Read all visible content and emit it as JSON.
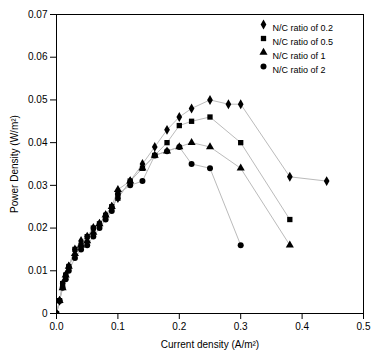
{
  "chart_data": {
    "type": "line",
    "xlabel": "Current density (A/m²)",
    "ylabel": "Power Density (W/m²)",
    "xlim": [
      0,
      0.5
    ],
    "ylim": [
      0,
      0.07
    ],
    "xticks": [
      {
        "value": 0,
        "label": "0.0"
      },
      0.1,
      0.2,
      0.3,
      0.4,
      0.5
    ],
    "yticks": [
      0,
      0.01,
      0.02,
      0.03,
      0.04,
      0.05,
      0.06,
      0.07
    ],
    "color": "#bbbbbb",
    "grid": false,
    "legend": "upper right",
    "series": [
      {
        "name": "N/C ratio of 0.2",
        "marker": "diamond",
        "x": [
          0.0,
          0.005,
          0.01,
          0.015,
          0.02,
          0.03,
          0.04,
          0.05,
          0.06,
          0.07,
          0.08,
          0.09,
          0.1,
          0.12,
          0.14,
          0.16,
          0.18,
          0.2,
          0.22,
          0.25,
          0.28,
          0.3,
          0.38,
          0.44
        ],
        "values": [
          0.0,
          0.003,
          0.007,
          0.009,
          0.011,
          0.015,
          0.017,
          0.018,
          0.02,
          0.021,
          0.023,
          0.025,
          0.027,
          0.031,
          0.035,
          0.039,
          0.043,
          0.046,
          0.048,
          0.05,
          0.049,
          0.049,
          0.032,
          0.031
        ]
      },
      {
        "name": "N/C ratio of 0.5",
        "marker": "square",
        "x": [
          0.0,
          0.005,
          0.01,
          0.015,
          0.02,
          0.03,
          0.04,
          0.05,
          0.06,
          0.07,
          0.08,
          0.09,
          0.1,
          0.12,
          0.14,
          0.16,
          0.18,
          0.2,
          0.22,
          0.25,
          0.3,
          0.38
        ],
        "values": [
          0.0,
          0.003,
          0.007,
          0.009,
          0.011,
          0.015,
          0.016,
          0.018,
          0.02,
          0.021,
          0.023,
          0.025,
          0.027,
          0.031,
          0.034,
          0.037,
          0.04,
          0.044,
          0.045,
          0.046,
          0.04,
          0.022
        ]
      },
      {
        "name": "N/C ratio of 1",
        "marker": "triangle",
        "x": [
          0.0,
          0.005,
          0.01,
          0.015,
          0.02,
          0.03,
          0.04,
          0.05,
          0.06,
          0.07,
          0.08,
          0.09,
          0.1,
          0.12,
          0.14,
          0.16,
          0.18,
          0.2,
          0.22,
          0.25,
          0.3,
          0.38
        ],
        "values": [
          0.0,
          0.003,
          0.006,
          0.009,
          0.011,
          0.014,
          0.016,
          0.017,
          0.019,
          0.021,
          0.023,
          0.025,
          0.029,
          0.031,
          0.034,
          0.037,
          0.038,
          0.039,
          0.04,
          0.039,
          0.034,
          0.016
        ]
      },
      {
        "name": "N/C ratio of 2",
        "marker": "circle",
        "x": [
          0.0,
          0.005,
          0.01,
          0.015,
          0.02,
          0.03,
          0.04,
          0.05,
          0.06,
          0.07,
          0.08,
          0.09,
          0.1,
          0.12,
          0.14,
          0.16,
          0.18,
          0.2,
          0.22,
          0.25,
          0.3
        ],
        "values": [
          0.0,
          0.003,
          0.006,
          0.008,
          0.01,
          0.013,
          0.015,
          0.016,
          0.018,
          0.02,
          0.022,
          0.024,
          0.028,
          0.03,
          0.031,
          0.037,
          0.038,
          0.039,
          0.035,
          0.034,
          0.016
        ]
      }
    ]
  }
}
